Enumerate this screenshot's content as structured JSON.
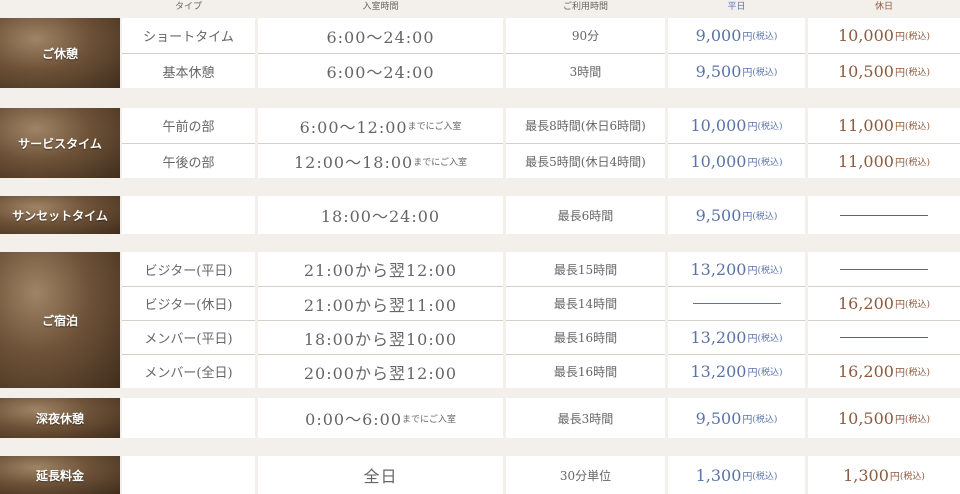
{
  "header": {
    "type": "タイプ",
    "entry": "入室時間",
    "duration": "ご利用時間",
    "weekday": "平日",
    "holiday": "休日"
  },
  "colors": {
    "weekday": "#5a74a6",
    "holiday": "#8c5b3e",
    "background": "#f3f0eb"
  },
  "groups": [
    {
      "label": "ご休憩",
      "rows": [
        {
          "type": "ショートタイム",
          "entry": "6:00〜24:00",
          "entry_note": "",
          "duration": "90分",
          "weekday": "9,000",
          "holiday": "10,000"
        },
        {
          "type": "基本休憩",
          "entry": "6:00〜24:00",
          "entry_note": "",
          "duration": "3時間",
          "weekday": "9,500",
          "holiday": "10,500"
        }
      ]
    },
    {
      "label": "サービスタイム",
      "rows": [
        {
          "type": "午前の部",
          "entry": "6:00〜12:00",
          "entry_note": "までにご入室",
          "duration": "最長8時間(休日6時間)",
          "weekday": "10,000",
          "holiday": "11,000"
        },
        {
          "type": "午後の部",
          "entry": "12:00〜18:00",
          "entry_note": "までにご入室",
          "duration": "最長5時間(休日4時間)",
          "weekday": "10,000",
          "holiday": "11,000"
        }
      ]
    },
    {
      "label": "サンセットタイム",
      "rows": [
        {
          "type": "",
          "entry": "18:00〜24:00",
          "entry_note": "",
          "duration": "最長6時間",
          "weekday": "9,500",
          "holiday": null
        }
      ]
    },
    {
      "label": "ご宿泊",
      "rows": [
        {
          "type": "ビジター(平日)",
          "entry": "21:00から翌12:00",
          "entry_note": "",
          "duration": "最長15時間",
          "weekday": "13,200",
          "holiday": null
        },
        {
          "type": "ビジター(休日)",
          "entry": "21:00から翌11:00",
          "entry_note": "",
          "duration": "最長14時間",
          "weekday": null,
          "holiday": "16,200"
        },
        {
          "type": "メンバー(平日)",
          "entry": "18:00から翌10:00",
          "entry_note": "",
          "duration": "最長16時間",
          "weekday": "13,200",
          "holiday": null
        },
        {
          "type": "メンバー(全日)",
          "entry": "20:00から翌12:00",
          "entry_note": "",
          "duration": "最長16時間",
          "weekday": "13,200",
          "holiday": "16,200"
        }
      ]
    },
    {
      "label": "深夜休憩",
      "rows": [
        {
          "type": "",
          "entry": "0:00〜6:00",
          "entry_note": "までにご入室",
          "duration": "最長3時間",
          "weekday": "9,500",
          "holiday": "10,500"
        }
      ]
    },
    {
      "label": "延長料金",
      "rows": [
        {
          "type": "",
          "entry": "全日",
          "entry_note": "",
          "duration": "30分単位",
          "weekday": "1,300",
          "holiday": "1,300"
        }
      ]
    }
  ],
  "price_unit": "円",
  "price_tax": "(税込)"
}
